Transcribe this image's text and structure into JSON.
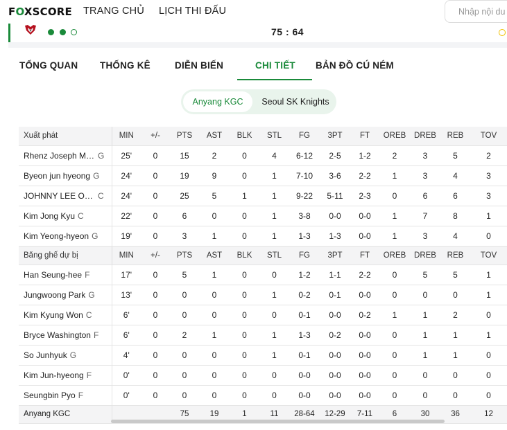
{
  "header": {
    "logo": "FOXSCORE",
    "nav": [
      "TRANG CHỦ",
      "LỊCH THI ĐẤU"
    ],
    "search_placeholder": "Nhập nội du"
  },
  "match": {
    "score": "75 : 64",
    "logo_color": "#b5101e"
  },
  "tabs": [
    "TỔNG QUAN",
    "THỐNG KÊ",
    "DIỄN BIẾN",
    "CHI TIẾT",
    "BẢN ĐỒ CÚ NÉM"
  ],
  "active_tab": "CHI TIẾT",
  "team_toggle": {
    "active": "Anyang KGC",
    "inactive": "Seoul SK Knights"
  },
  "stats": {
    "columns": [
      "MIN",
      "+/-",
      "PTS",
      "AST",
      "BLK",
      "STL",
      "FG",
      "3PT",
      "FT",
      "OREB",
      "DREB",
      "REB",
      "TOV"
    ],
    "starters_label": "Xuất phát",
    "bench_label": "Băng ghế dự bị",
    "starters": [
      {
        "name": "Rhenz Joseph Ma...",
        "pos": "G",
        "stats": [
          "25'",
          "0",
          "15",
          "2",
          "0",
          "4",
          "6-12",
          "2-5",
          "1-2",
          "2",
          "3",
          "5",
          "2"
        ]
      },
      {
        "name": "Byeon jun hyeong",
        "pos": "G",
        "stats": [
          "24'",
          "0",
          "19",
          "9",
          "0",
          "1",
          "7-10",
          "3-6",
          "2-2",
          "1",
          "3",
          "4",
          "3"
        ]
      },
      {
        "name": "JOHNNY LEE O BR...",
        "pos": "C",
        "stats": [
          "24'",
          "0",
          "25",
          "5",
          "1",
          "1",
          "9-22",
          "5-11",
          "2-3",
          "0",
          "6",
          "6",
          "3"
        ]
      },
      {
        "name": "Kim Jong Kyu",
        "pos": "C",
        "stats": [
          "22'",
          "0",
          "6",
          "0",
          "0",
          "1",
          "3-8",
          "0-0",
          "0-0",
          "1",
          "7",
          "8",
          "1"
        ]
      },
      {
        "name": "Kim Yeong-hyeon",
        "pos": "G",
        "stats": [
          "19'",
          "0",
          "3",
          "1",
          "0",
          "1",
          "1-3",
          "1-3",
          "0-0",
          "1",
          "3",
          "4",
          "0"
        ]
      }
    ],
    "bench": [
      {
        "name": "Han Seung-hee",
        "pos": "F",
        "stats": [
          "17'",
          "0",
          "5",
          "1",
          "0",
          "0",
          "1-2",
          "1-1",
          "2-2",
          "0",
          "5",
          "5",
          "1"
        ]
      },
      {
        "name": "Jungwoong Park",
        "pos": "G",
        "stats": [
          "13'",
          "0",
          "0",
          "0",
          "0",
          "1",
          "0-2",
          "0-1",
          "0-0",
          "0",
          "0",
          "0",
          "1"
        ]
      },
      {
        "name": "Kim Kyung Won",
        "pos": "C",
        "stats": [
          "6'",
          "0",
          "0",
          "0",
          "0",
          "0",
          "0-1",
          "0-0",
          "0-2",
          "1",
          "1",
          "2",
          "0"
        ]
      },
      {
        "name": "Bryce Washington",
        "pos": "F",
        "stats": [
          "6'",
          "0",
          "2",
          "1",
          "0",
          "1",
          "1-3",
          "0-2",
          "0-0",
          "0",
          "1",
          "1",
          "1"
        ]
      },
      {
        "name": "So Junhyuk",
        "pos": "G",
        "stats": [
          "4'",
          "0",
          "0",
          "0",
          "0",
          "1",
          "0-1",
          "0-0",
          "0-0",
          "0",
          "1",
          "1",
          "0"
        ]
      },
      {
        "name": "Kim Jun-hyeong",
        "pos": "F",
        "stats": [
          "0'",
          "0",
          "0",
          "0",
          "0",
          "0",
          "0-0",
          "0-0",
          "0-0",
          "0",
          "0",
          "0",
          "0"
        ]
      },
      {
        "name": "Seungbin Pyo",
        "pos": "F",
        "stats": [
          "0'",
          "0",
          "0",
          "0",
          "0",
          "0",
          "0-0",
          "0-0",
          "0-0",
          "0",
          "0",
          "0",
          "0"
        ]
      }
    ],
    "totals": {
      "team": "Anyang KGC",
      "stats": [
        "",
        "",
        "75",
        "19",
        "1",
        "11",
        "28-64",
        "12-29",
        "7-11",
        "6",
        "30",
        "36",
        "12"
      ]
    }
  },
  "colors": {
    "accent": "#1a8a3a",
    "toggle_bg": "#e9f4ec",
    "header_row_bg": "#f4f4f5",
    "live_dot": "#f0c000"
  },
  "icons": [
    "team-logo-icon",
    "search-icon"
  ]
}
